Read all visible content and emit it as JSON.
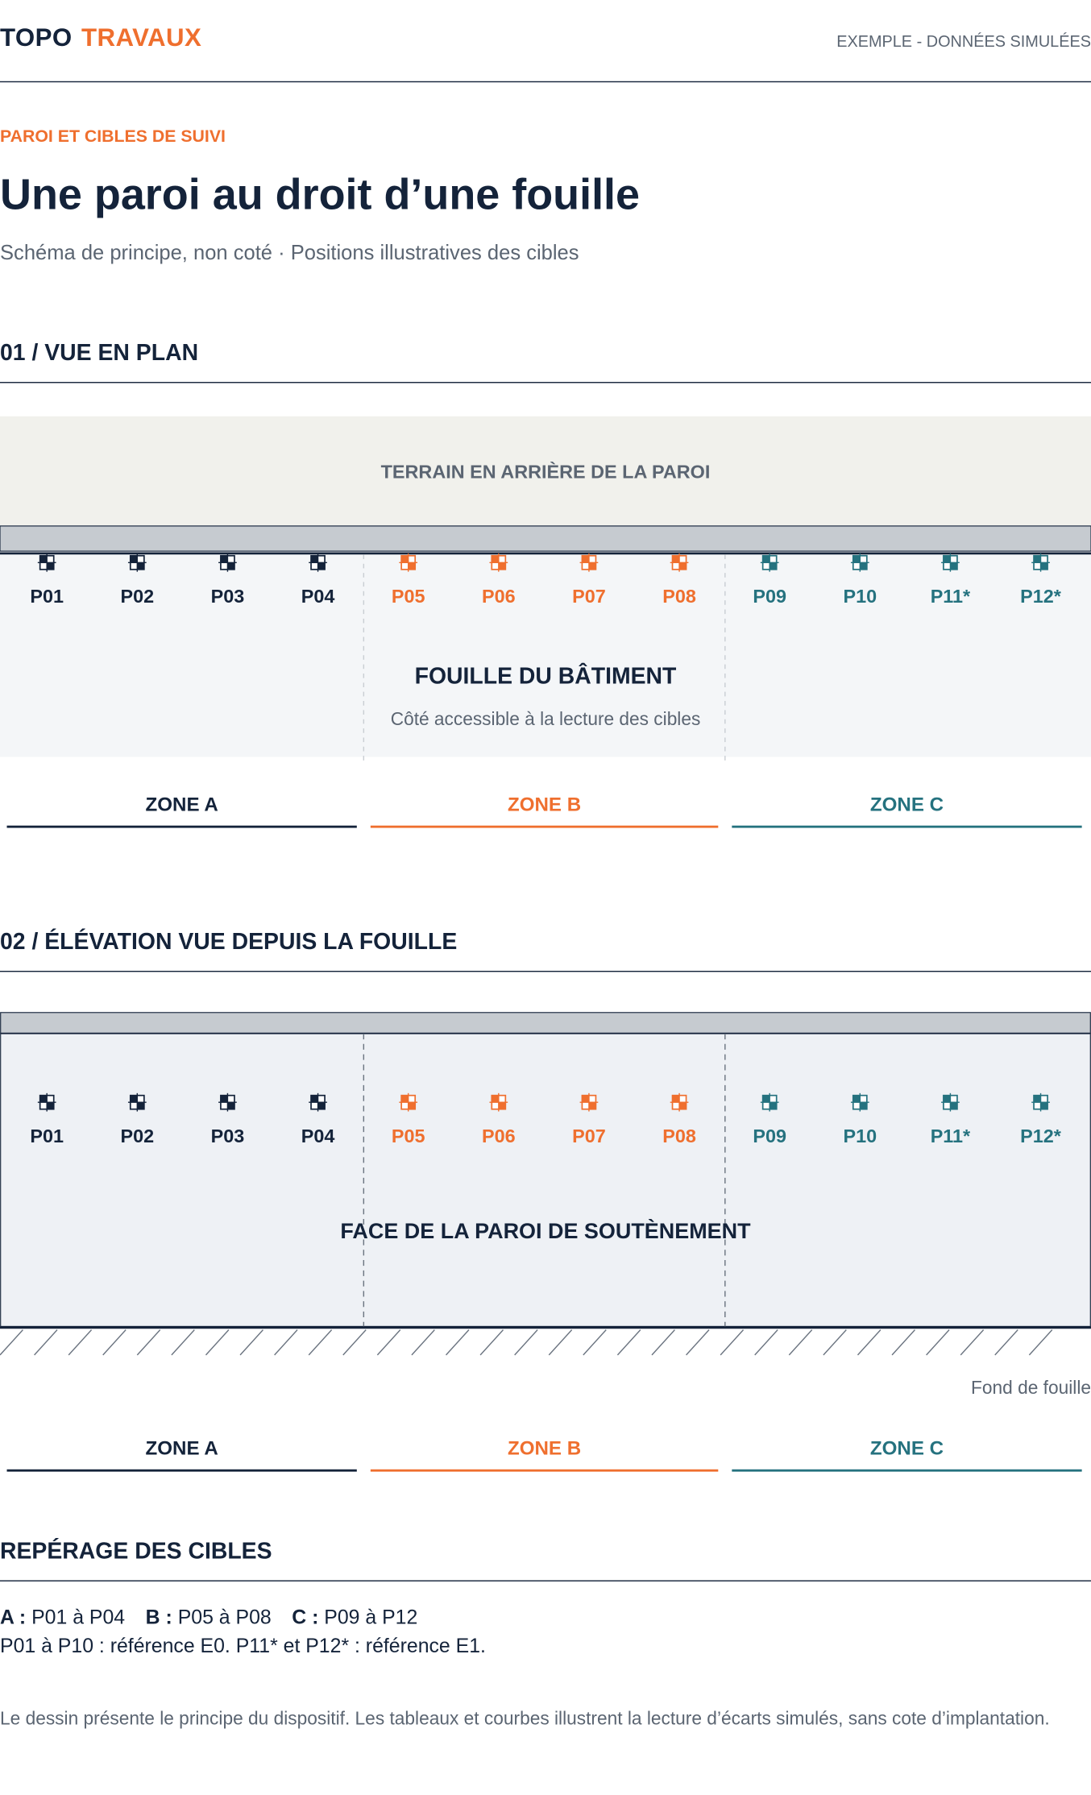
{
  "header": {
    "logo_part1": "TOPO",
    "logo_part2": "TRAVAUX",
    "badge": "EXEMPLE - DONNÉES SIMULÉES"
  },
  "eyebrow": "PAROI ET CIBLES DE SUIVI",
  "title": "Une paroi au droit d’une fouille",
  "subtitle": "Schéma de principe, non coté · Positions illustratives des cibles",
  "colors": {
    "zone_a": "#14233a",
    "zone_b": "#ef6f2e",
    "zone_c": "#25727f"
  },
  "plan": {
    "section_title": "01 / VUE EN PLAN",
    "terrain_label": "TERRAIN EN ARRIÈRE DE LA PAROI",
    "excavation_label": "FOUILLE DU BÂTIMENT",
    "excavation_sub": "Côté accessible à la lecture des cibles"
  },
  "elevation": {
    "section_title": "02 / ÉLÉVATION VUE DEPUIS LA FOUILLE",
    "wall_label": "FACE DE LA PAROI DE SOUTÈNEMENT",
    "bottom_label": "Fond de fouille"
  },
  "zones": [
    {
      "label": "ZONE A",
      "color": "#14233a"
    },
    {
      "label": "ZONE B",
      "color": "#ef6f2e"
    },
    {
      "label": "ZONE C",
      "color": "#25727f"
    }
  ],
  "targets": [
    {
      "id": "P01",
      "zone": "A"
    },
    {
      "id": "P02",
      "zone": "A"
    },
    {
      "id": "P03",
      "zone": "A"
    },
    {
      "id": "P04",
      "zone": "A"
    },
    {
      "id": "P05",
      "zone": "B"
    },
    {
      "id": "P06",
      "zone": "B"
    },
    {
      "id": "P07",
      "zone": "B"
    },
    {
      "id": "P08",
      "zone": "B"
    },
    {
      "id": "P09",
      "zone": "C"
    },
    {
      "id": "P10",
      "zone": "C"
    },
    {
      "id": "P11*",
      "zone": "C"
    },
    {
      "id": "P12*",
      "zone": "C"
    }
  ],
  "legend": {
    "section_title": "REPÉRAGE DES CIBLES",
    "a_key": "A :",
    "a_val": "P01 à P04",
    "b_key": "B :",
    "b_val": "P05 à P08",
    "c_key": "C :",
    "c_val": "P09 à P12",
    "reference": "P01 à P10 : référence E0. P11* et P12* : référence E1."
  },
  "note": "Le dessin présente le principe du dispositif. Les tableaux et courbes illustrent la lecture d’écarts simulés, sans cote d’implantation."
}
